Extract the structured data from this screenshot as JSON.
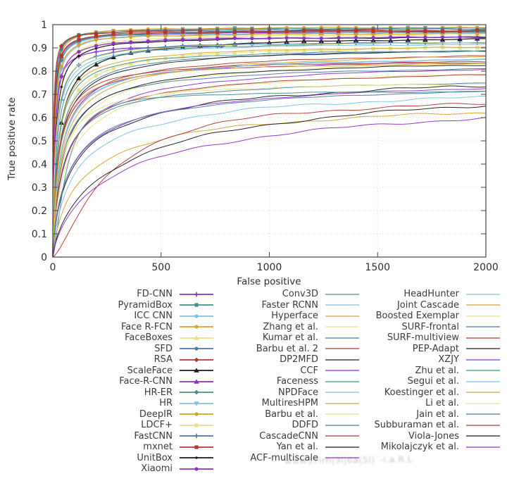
{
  "colors": {
    "violet": "#8d30cc",
    "seagreen": "#3e9489",
    "skyblue": "#7fbfe5",
    "gold": "#d4a32a",
    "khaki": "#e8e188",
    "steelblue": "#4a7aa9",
    "firebrick": "#b03830",
    "black": "#1a1a1a"
  },
  "watermark": {
    "text": "www57irh|3l|6a(5l)˙-i.a.R.L"
  },
  "chart_data": {
    "type": "line",
    "title": "",
    "xlabel": "False positive",
    "ylabel": "True positive rate",
    "xlim": [
      0,
      2000
    ],
    "ylim": [
      0,
      1
    ],
    "xticks": [
      0,
      500,
      1000,
      1500,
      2000
    ],
    "yticks": [
      0,
      0.1,
      0.2,
      0.3,
      0.4,
      0.5,
      0.6,
      0.7,
      0.8,
      0.9,
      1
    ],
    "grid": true,
    "legend_position": "below-plot, three columns",
    "legend_columns": [
      17,
      16,
      15
    ],
    "value_note": "ROC curves (FDDB-style benchmark). tpr_at_2000 = true positive rate read at 2000 false positives (estimated from pixels). Curves modeled as tpr = tpr_at_2000 * fp^p / (fp^p + k^p); 'end' = last false-positive value the curve is drawn to.",
    "series": [
      {
        "label": "FD-CNN",
        "color": "violet",
        "marker": "plus",
        "tpr_at_2000": 0.92,
        "k": 6,
        "p": 0.9,
        "end": 780
      },
      {
        "label": "PyramidBox",
        "color": "seagreen",
        "marker": "square",
        "tpr_at_2000": 0.987,
        "k": 4,
        "p": 1.0,
        "end": 2000
      },
      {
        "label": "ICC CNN",
        "color": "skyblue",
        "marker": "circle",
        "tpr_at_2000": 0.972,
        "k": 6,
        "p": 1.0,
        "end": 2000
      },
      {
        "label": "Face R-FCN",
        "color": "gold",
        "marker": "circle",
        "tpr_at_2000": 0.99,
        "k": 5,
        "p": 1.0,
        "end": 2000
      },
      {
        "label": "FaceBoxes",
        "color": "khaki",
        "marker": "triangle",
        "tpr_at_2000": 0.96,
        "k": 10,
        "p": 1.0,
        "end": 2000
      },
      {
        "label": "SFD",
        "color": "steelblue",
        "marker": "circle",
        "tpr_at_2000": 0.983,
        "k": 4,
        "p": 1.0,
        "end": 2000
      },
      {
        "label": "RSA",
        "color": "firebrick",
        "marker": "diamond",
        "tpr_at_2000": 0.977,
        "k": 3,
        "p": 1.0,
        "end": 2000
      },
      {
        "label": "ScaleFace",
        "color": "black",
        "marker": "triangle",
        "tpr_at_2000": 0.956,
        "k": 25,
        "p": 0.9,
        "end": 2000
      },
      {
        "label": "Face-R-CNN",
        "color": "violet",
        "marker": "triangle",
        "tpr_at_2000": 0.97,
        "k": 5,
        "p": 1.0,
        "end": 2000
      },
      {
        "label": "HR-ER",
        "color": "seagreen",
        "marker": "diamond",
        "tpr_at_2000": 0.976,
        "k": 6,
        "p": 1.0,
        "end": 2000
      },
      {
        "label": "HR",
        "color": "skyblue",
        "marker": "triangle-down",
        "tpr_at_2000": 0.97,
        "k": 8,
        "p": 1.0,
        "end": 2000
      },
      {
        "label": "DeepIR",
        "color": "gold",
        "marker": "circle",
        "tpr_at_2000": 0.965,
        "k": 7,
        "p": 1.0,
        "end": 2000
      },
      {
        "label": "LDCF+",
        "color": "khaki",
        "marker": "square",
        "tpr_at_2000": 0.922,
        "k": 30,
        "p": 0.9,
        "end": 2000
      },
      {
        "label": "FastCNN",
        "color": "steelblue",
        "marker": "plus",
        "tpr_at_2000": 0.93,
        "k": 15,
        "p": 1.0,
        "end": 2000
      },
      {
        "label": "mxnet",
        "color": "firebrick",
        "marker": "square",
        "tpr_at_2000": 0.975,
        "k": 5,
        "p": 1.0,
        "end": 2000
      },
      {
        "label": "UnitBox",
        "color": "black",
        "marker": "dot",
        "tpr_at_2000": 0.951,
        "k": 12,
        "p": 1.0,
        "end": 2000
      },
      {
        "label": "Xiaomi",
        "color": "violet",
        "marker": "circle",
        "tpr_at_2000": 0.95,
        "k": 9,
        "p": 1.0,
        "end": 2000
      },
      {
        "label": "Conv3D",
        "color": "seagreen",
        "marker": null,
        "tpr_at_2000": 0.935,
        "k": 18,
        "p": 0.9,
        "end": 2000
      },
      {
        "label": "Faster RCNN",
        "color": "skyblue",
        "marker": null,
        "tpr_at_2000": 0.925,
        "k": 14,
        "p": 0.9,
        "end": 2000
      },
      {
        "label": "Hyperface",
        "color": "gold",
        "marker": null,
        "tpr_at_2000": 0.918,
        "k": 22,
        "p": 0.9,
        "end": 2000
      },
      {
        "label": "Zhang et al.",
        "color": "khaki",
        "marker": null,
        "tpr_at_2000": 0.931,
        "k": 12,
        "p": 0.9,
        "end": 2000
      },
      {
        "label": "Kumar et al.",
        "color": "steelblue",
        "marker": null,
        "tpr_at_2000": 0.91,
        "k": 28,
        "p": 0.85,
        "end": 2000
      },
      {
        "label": "Barbu et al. 2",
        "color": "firebrick",
        "marker": null,
        "tpr_at_2000": 0.895,
        "k": 38,
        "p": 0.85,
        "end": 2000
      },
      {
        "label": "DP2MFD",
        "color": "black",
        "marker": null,
        "tpr_at_2000": 0.913,
        "k": 32,
        "p": 0.85,
        "end": 2000
      },
      {
        "label": "CCF",
        "color": "violet",
        "marker": null,
        "tpr_at_2000": 0.859,
        "k": 28,
        "p": 0.85,
        "end": 2000
      },
      {
        "label": "Faceness",
        "color": "seagreen",
        "marker": null,
        "tpr_at_2000": 0.903,
        "k": 22,
        "p": 0.9,
        "end": 2000
      },
      {
        "label": "NPDFace",
        "color": "skyblue",
        "marker": null,
        "tpr_at_2000": 0.876,
        "k": 36,
        "p": 0.85,
        "end": 2000
      },
      {
        "label": "MultiresHPM",
        "color": "gold",
        "marker": null,
        "tpr_at_2000": 0.904,
        "k": 45,
        "p": 0.8,
        "end": 2000
      },
      {
        "label": "Barbu et al.",
        "color": "khaki",
        "marker": null,
        "tpr_at_2000": 0.88,
        "k": 55,
        "p": 0.8,
        "end": 2000
      },
      {
        "label": "DDFD",
        "color": "steelblue",
        "marker": null,
        "tpr_at_2000": 0.84,
        "k": 42,
        "p": 0.85,
        "end": 2000
      },
      {
        "label": "CascadeCNN",
        "color": "firebrick",
        "marker": null,
        "tpr_at_2000": 0.857,
        "k": 26,
        "p": 0.9,
        "end": 2000
      },
      {
        "label": "Yan et al.",
        "color": "black",
        "marker": null,
        "tpr_at_2000": 0.861,
        "k": 48,
        "p": 0.85,
        "end": 2000
      },
      {
        "label": "ACF-multiscale",
        "color": "violet",
        "marker": null,
        "tpr_at_2000": 0.86,
        "k": 65,
        "p": 0.8,
        "end": 2000
      },
      {
        "label": "HeadHunter",
        "color": "skyblue",
        "marker": null,
        "tpr_at_2000": 0.88,
        "k": 38,
        "p": 0.85,
        "end": 2000
      },
      {
        "label": "Joint Cascade",
        "color": "gold",
        "marker": null,
        "tpr_at_2000": 0.85,
        "k": 28,
        "p": 0.9,
        "end": 2000
      },
      {
        "label": "Boosted Exemplar",
        "color": "khaki",
        "marker": null,
        "tpr_at_2000": 0.845,
        "k": 75,
        "p": 0.8,
        "end": 2000
      },
      {
        "label": "SURF-frontal",
        "color": "steelblue",
        "marker": null,
        "tpr_at_2000": 0.78,
        "k": 48,
        "p": 0.85,
        "end": 2000
      },
      {
        "label": "SURF-multiview",
        "color": "firebrick",
        "marker": null,
        "tpr_at_2000": 0.83,
        "k": 58,
        "p": 0.8,
        "end": 2000
      },
      {
        "label": "PEP-Adapt",
        "color": "black",
        "marker": null,
        "tpr_at_2000": 0.82,
        "k": 110,
        "p": 0.75,
        "end": 2000
      },
      {
        "label": "XZJY",
        "color": "violet",
        "marker": null,
        "tpr_at_2000": 0.8,
        "k": 95,
        "p": 0.75,
        "end": 2000
      },
      {
        "label": "Zhu et al.",
        "color": "seagreen",
        "marker": null,
        "tpr_at_2000": 0.715,
        "k": 60,
        "p": 1.5,
        "end": 2000
      },
      {
        "label": "Segui et al.",
        "color": "skyblue",
        "marker": null,
        "tpr_at_2000": 0.76,
        "k": 120,
        "p": 0.8,
        "end": 2000
      },
      {
        "label": "Koestinger et al.",
        "color": "gold",
        "marker": null,
        "tpr_at_2000": 0.7,
        "k": 150,
        "p": 0.8,
        "end": 2000
      },
      {
        "label": "Li et al.",
        "color": "khaki",
        "marker": null,
        "tpr_at_2000": 0.765,
        "k": 35,
        "p": 0.9,
        "end": 2000
      },
      {
        "label": "Jain et al.",
        "color": "steelblue",
        "marker": null,
        "tpr_at_2000": 0.77,
        "k": 85,
        "p": 0.8,
        "end": 2000
      },
      {
        "label": "Subburaman et al.",
        "color": "firebrick",
        "marker": null,
        "tpr_at_2000": 0.695,
        "k": 250,
        "p": 1.4,
        "end": 2000
      },
      {
        "label": "Viola-Jones",
        "color": "black",
        "marker": null,
        "tpr_at_2000": 0.83,
        "k": 350,
        "p": 0.75,
        "end": 2000
      },
      {
        "label": "Mikolajczyk et al.",
        "color": "violet",
        "marker": null,
        "tpr_at_2000": 0.76,
        "k": 350,
        "p": 0.75,
        "end": 2000
      }
    ]
  }
}
